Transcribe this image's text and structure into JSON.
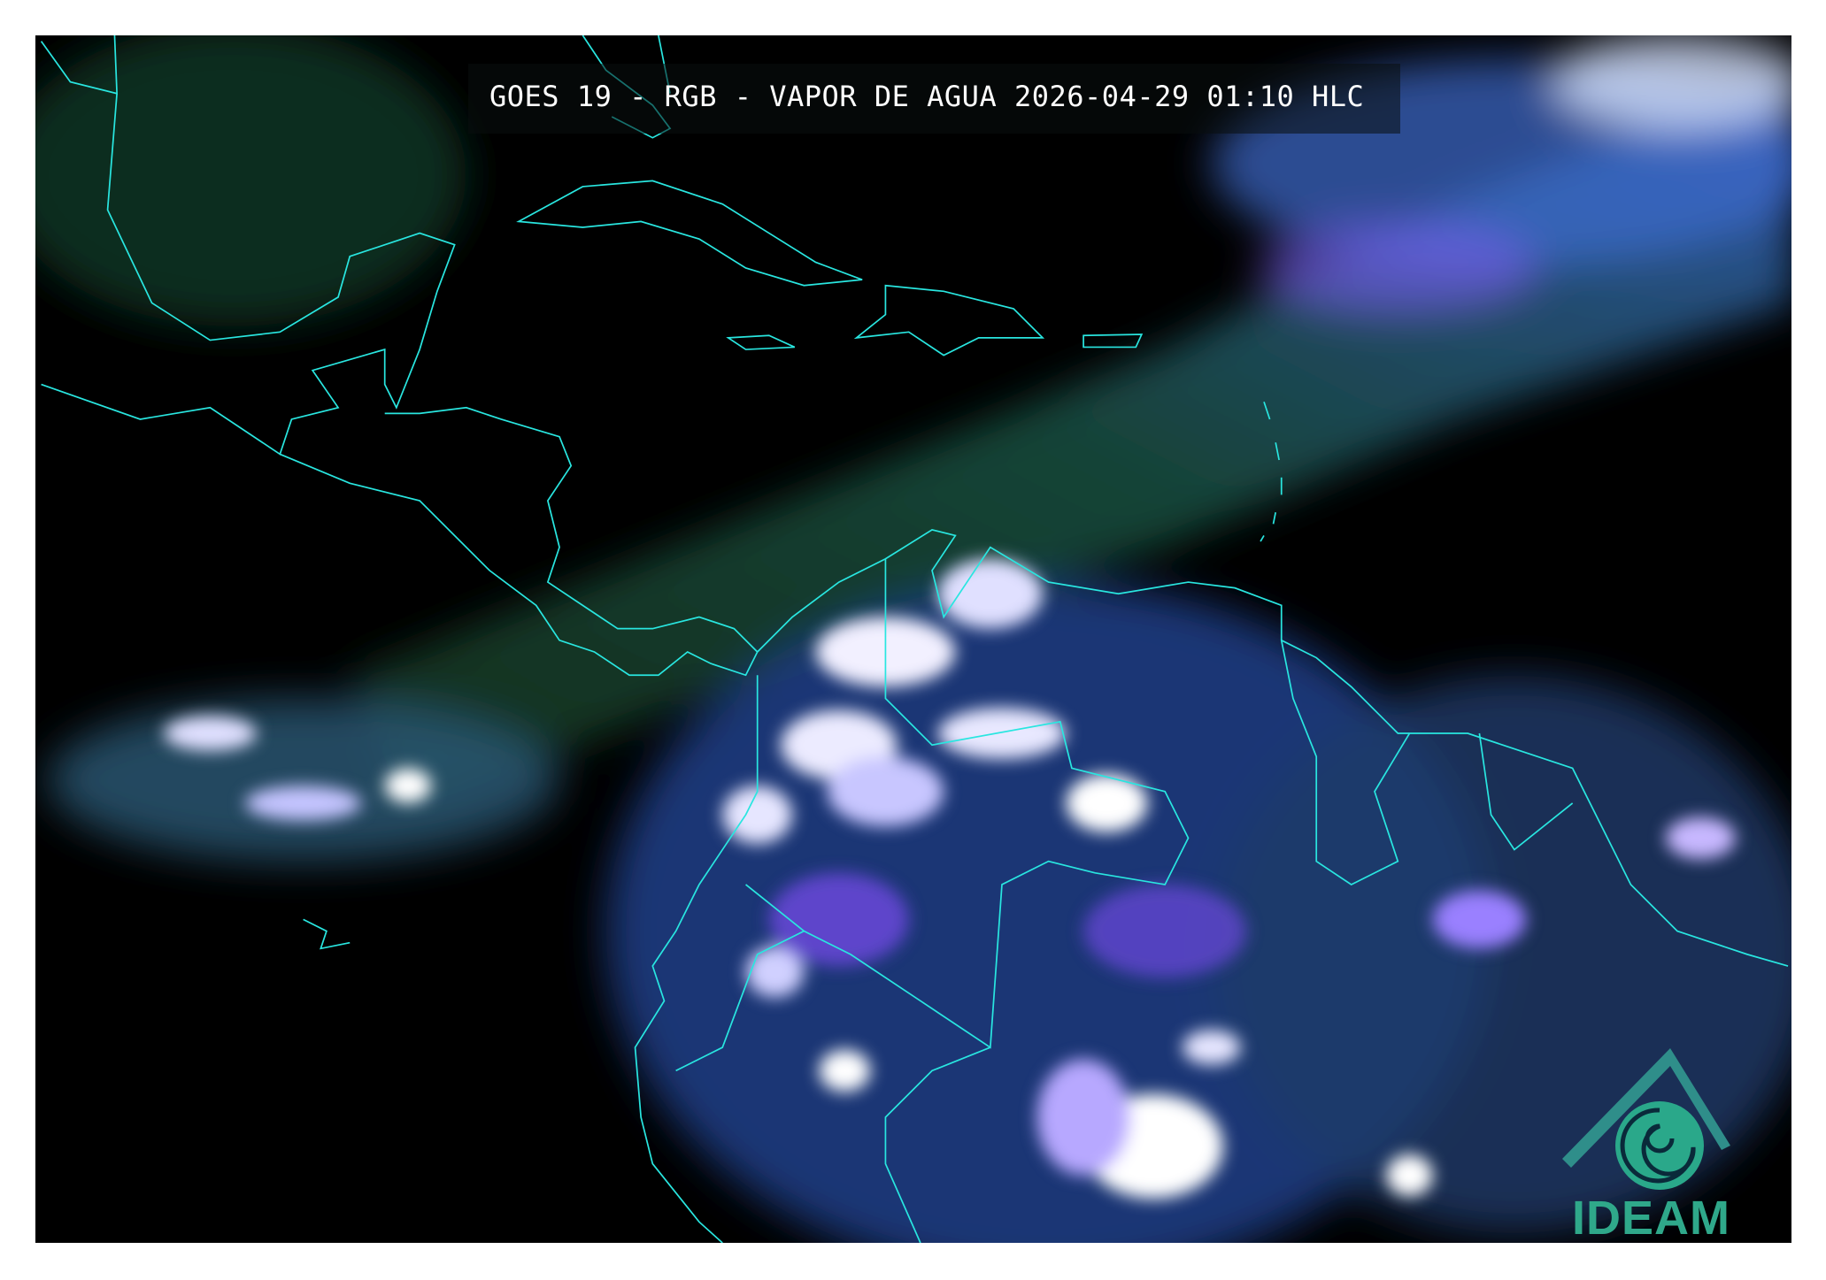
{
  "title": "GOES 19 - RGB - VAPOR DE AGUA 2026-04-29 01:10 HLC",
  "logo": {
    "text": "IDEAM",
    "color": "#2fa88a"
  },
  "colors": {
    "background": "#000000",
    "coastline": "#29e6e0",
    "moisture_green": "#1f4a2a",
    "cloud_blue": "#3a78e0",
    "cloud_purple": "#7a4cf0",
    "cloud_white": "#f2f0ff",
    "frame": "#ffffff"
  }
}
